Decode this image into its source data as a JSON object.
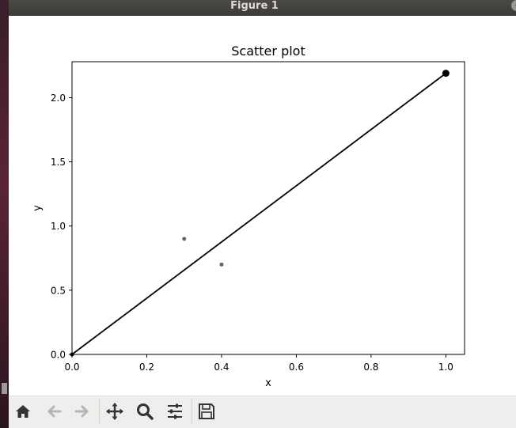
{
  "window": {
    "title": "Figure 1"
  },
  "titlebar_buttons": [
    {
      "name": "minimize",
      "glyph": "–"
    },
    {
      "name": "maximize",
      "glyph": "□"
    },
    {
      "name": "close",
      "glyph": "×"
    }
  ],
  "toolbar": [
    {
      "name": "home-icon",
      "enabled": true
    },
    {
      "name": "back-arrow-icon",
      "enabled": false
    },
    {
      "name": "forward-arrow-icon",
      "enabled": false
    },
    {
      "name": "pan-icon",
      "enabled": true
    },
    {
      "name": "zoom-icon",
      "enabled": true
    },
    {
      "name": "configure-subplots-icon",
      "enabled": true
    },
    {
      "name": "save-icon",
      "enabled": true
    }
  ],
  "chart_data": {
    "type": "scatter",
    "title": "Scatter plot",
    "xlabel": "x",
    "ylabel": "y",
    "xlim": [
      0,
      1.05
    ],
    "ylim": [
      0,
      2.28
    ],
    "xticks": [
      0.0,
      0.2,
      0.4,
      0.6,
      0.8,
      1.0
    ],
    "xtick_labels": [
      "0.0",
      "0.2",
      "0.4",
      "0.6",
      "0.8",
      "1.0"
    ],
    "yticks": [
      0.0,
      0.5,
      1.0,
      1.5,
      2.0
    ],
    "ytick_labels": [
      "0.0",
      "0.5",
      "1.0",
      "1.5",
      "2.0"
    ],
    "grid": false,
    "points": [
      {
        "x": 0.3,
        "y": 0.9,
        "color": "#666666",
        "size": "small"
      },
      {
        "x": 0.4,
        "y": 0.7,
        "color": "#666666",
        "size": "small"
      },
      {
        "x": 0.0,
        "y": 0.0,
        "color": "#000000",
        "size": "small"
      },
      {
        "x": 1.0,
        "y": 2.19,
        "color": "#000000",
        "size": "large"
      }
    ],
    "line": {
      "x": [
        0.0,
        1.0
      ],
      "y": [
        0.0,
        2.19
      ],
      "color": "#000000"
    }
  }
}
